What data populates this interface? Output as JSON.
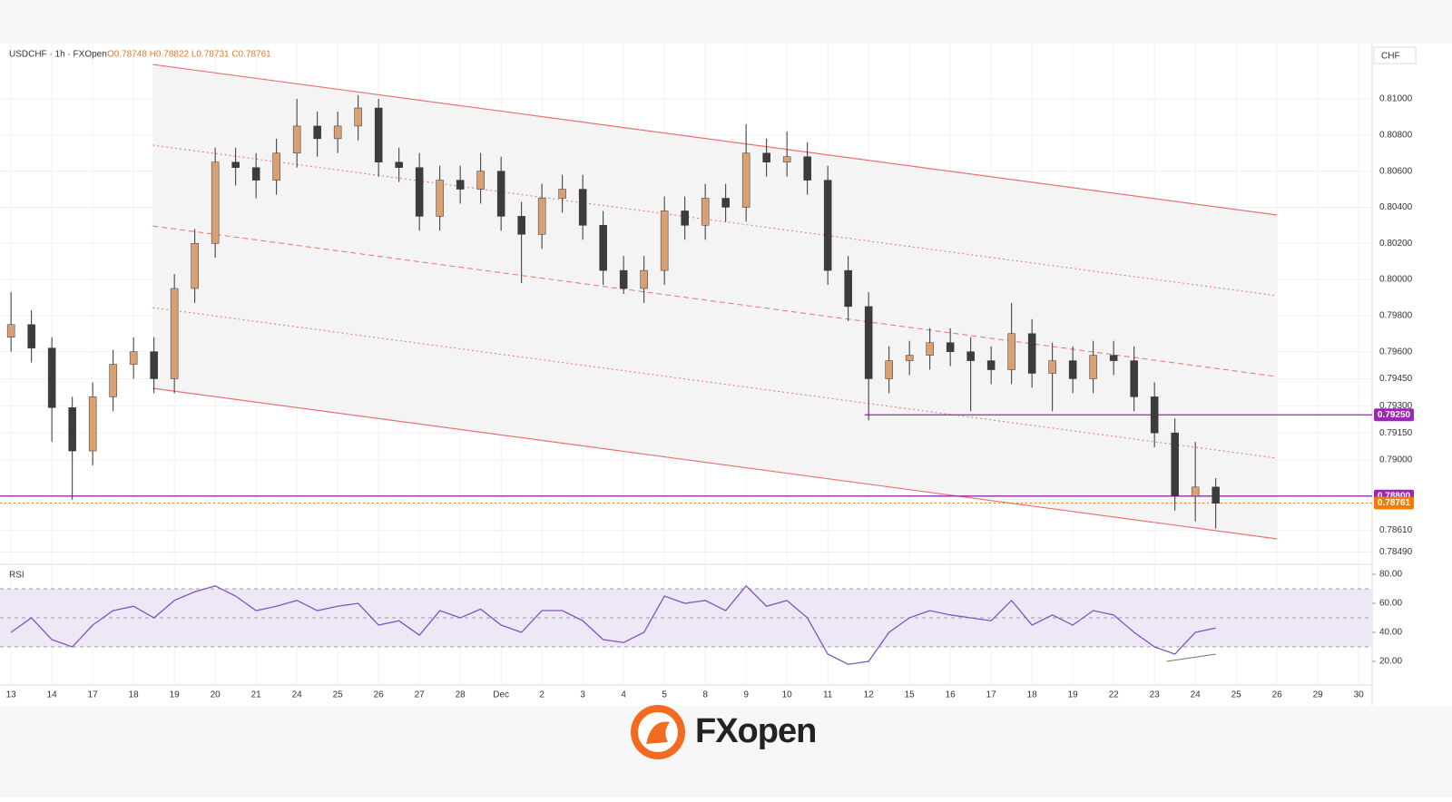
{
  "chart_data": {
    "type": "candlestick",
    "symbol": "USDCHF · 1h · FXOpen",
    "ohlc_text": "O0.78748 H0.78822 L0.78731 C0.78761",
    "axis_unit": "CHF",
    "brand": "FXopen",
    "up_color": "#d8a073",
    "down_color": "#3c3c3c",
    "x_labels": [
      "13",
      "14",
      "17",
      "18",
      "19",
      "20",
      "21",
      "24",
      "25",
      "26",
      "27",
      "28",
      "Dec",
      "2",
      "3",
      "4",
      "5",
      "8",
      "9",
      "10",
      "11",
      "12",
      "15",
      "16",
      "17",
      "18",
      "19",
      "22",
      "23",
      "24",
      "25",
      "26",
      "29",
      "30"
    ],
    "xlim": [
      -0.27,
      33.33
    ],
    "ylim": [
      0.78422,
      0.81307
    ],
    "yticks": [
      {
        "value": 0.81,
        "label": "0.81000"
      },
      {
        "value": 0.808,
        "label": "0.80800"
      },
      {
        "value": 0.806,
        "label": "0.80600"
      },
      {
        "value": 0.804,
        "label": "0.80400"
      },
      {
        "value": 0.802,
        "label": "0.80200"
      },
      {
        "value": 0.8,
        "label": "0.80000"
      },
      {
        "value": 0.798,
        "label": "0.79800"
      },
      {
        "value": 0.796,
        "label": "0.79600"
      },
      {
        "value": 0.7945,
        "label": "0.79450"
      },
      {
        "value": 0.793,
        "label": "0.79300"
      },
      {
        "value": 0.7915,
        "label": "0.79150"
      },
      {
        "value": 0.79,
        "label": "0.79000"
      },
      {
        "value": 0.7861,
        "label": "0.78610"
      },
      {
        "value": 0.7849,
        "label": "0.78490"
      }
    ],
    "x": [
      0,
      0.5,
      1,
      1.5,
      2,
      2.5,
      3,
      3.5,
      4,
      4.5,
      5,
      5.5,
      6,
      6.5,
      7,
      7.5,
      8,
      8.5,
      9,
      9.5,
      10,
      10.5,
      11,
      11.5,
      12,
      12.5,
      13,
      13.5,
      14,
      14.5,
      15,
      15.5,
      16,
      16.5,
      17,
      17.5,
      18,
      18.5,
      19,
      19.5,
      20,
      20.5,
      21,
      21.5,
      22,
      22.5,
      23,
      23.5,
      24,
      24.5,
      25,
      25.5,
      26,
      26.5,
      27,
      27.5,
      28,
      28.5,
      29,
      29.5
    ],
    "open": [
      0.7968,
      0.7975,
      0.7962,
      0.7929,
      0.7905,
      0.7935,
      0.7953,
      0.796,
      0.7945,
      0.7995,
      0.802,
      0.8065,
      0.8062,
      0.8055,
      0.807,
      0.8085,
      0.8078,
      0.8085,
      0.8095,
      0.8065,
      0.8062,
      0.8035,
      0.8055,
      0.805,
      0.806,
      0.8035,
      0.8025,
      0.8045,
      0.805,
      0.803,
      0.8005,
      0.7995,
      0.8005,
      0.8038,
      0.803,
      0.8045,
      0.804,
      0.807,
      0.8065,
      0.8068,
      0.8055,
      0.8005,
      0.7985,
      0.7945,
      0.7955,
      0.7958,
      0.7965,
      0.796,
      0.7955,
      0.795,
      0.797,
      0.7948,
      0.7955,
      0.7945,
      0.7958,
      0.7955,
      0.7935,
      0.7915,
      0.788,
      0.7885
    ],
    "high": [
      0.7993,
      0.7983,
      0.7968,
      0.7935,
      0.7943,
      0.7961,
      0.7968,
      0.7968,
      0.8003,
      0.8028,
      0.8073,
      0.8073,
      0.807,
      0.8078,
      0.81,
      0.8093,
      0.8093,
      0.8102,
      0.81,
      0.8073,
      0.807,
      0.8063,
      0.8063,
      0.807,
      0.8068,
      0.8043,
      0.8053,
      0.8058,
      0.8058,
      0.8038,
      0.8013,
      0.8013,
      0.8046,
      0.8046,
      0.8053,
      0.8053,
      0.8086,
      0.8078,
      0.8082,
      0.8076,
      0.8063,
      0.8013,
      0.7993,
      0.7963,
      0.7966,
      0.7973,
      0.7973,
      0.7968,
      0.7963,
      0.7987,
      0.7978,
      0.7965,
      0.7963,
      0.7966,
      0.7966,
      0.7963,
      0.7943,
      0.7923,
      0.791,
      0.789
    ],
    "low": [
      0.796,
      0.7954,
      0.791,
      0.7878,
      0.7897,
      0.7927,
      0.7945,
      0.7937,
      0.7937,
      0.7987,
      0.8012,
      0.8052,
      0.8045,
      0.8047,
      0.8062,
      0.8068,
      0.807,
      0.8077,
      0.8057,
      0.8054,
      0.8027,
      0.8027,
      0.8042,
      0.8042,
      0.8027,
      0.7998,
      0.8017,
      0.8037,
      0.8022,
      0.7997,
      0.7992,
      0.7987,
      0.7997,
      0.8022,
      0.8022,
      0.8032,
      0.8032,
      0.8057,
      0.8057,
      0.8047,
      0.7997,
      0.7977,
      0.7922,
      0.7937,
      0.7947,
      0.795,
      0.7952,
      0.7927,
      0.7942,
      0.7942,
      0.794,
      0.7927,
      0.7937,
      0.7937,
      0.7947,
      0.7927,
      0.7907,
      0.7872,
      0.7866,
      0.7862
    ],
    "close": [
      0.7975,
      0.7962,
      0.7929,
      0.7905,
      0.7935,
      0.7953,
      0.796,
      0.7945,
      0.7995,
      0.802,
      0.8065,
      0.8062,
      0.8055,
      0.807,
      0.8085,
      0.8078,
      0.8085,
      0.8095,
      0.8065,
      0.8062,
      0.8035,
      0.8055,
      0.805,
      0.806,
      0.8035,
      0.8025,
      0.8045,
      0.805,
      0.803,
      0.8005,
      0.7995,
      0.8005,
      0.8038,
      0.803,
      0.8045,
      0.804,
      0.807,
      0.8065,
      0.8068,
      0.8055,
      0.8005,
      0.7985,
      0.7945,
      0.7955,
      0.7958,
      0.7965,
      0.796,
      0.7955,
      0.795,
      0.797,
      0.7948,
      0.7955,
      0.7945,
      0.7958,
      0.7955,
      0.7935,
      0.7915,
      0.788,
      0.7885,
      0.7876
    ],
    "trend_lines": [
      {
        "x": [
          3.47,
          31.0
        ],
        "y": [
          0.81191,
          0.80357
        ],
        "style": "solid"
      },
      {
        "x": [
          3.47,
          31.0
        ],
        "y": [
          0.80744,
          0.7991
        ],
        "style": "dotted"
      },
      {
        "x": [
          3.47,
          31.0
        ],
        "y": [
          0.80296,
          0.79462
        ],
        "style": "dashed"
      },
      {
        "x": [
          3.47,
          31.0
        ],
        "y": [
          0.79844,
          0.7901
        ],
        "style": "dotted"
      },
      {
        "x": [
          3.47,
          31.0
        ],
        "y": [
          0.79397,
          0.78563
        ],
        "style": "solid"
      }
    ],
    "trend_color": "#e57373",
    "price_levels": [
      {
        "value": 0.7925,
        "label": "0.79250",
        "color": "#9c27b0",
        "from": 20.9,
        "style": "solid"
      },
      {
        "value": 0.788,
        "label": "0.78800",
        "color": "#9c27b0",
        "style": "solid"
      },
      {
        "value": 0.78761,
        "label": "0.78761",
        "color": "#f57c00",
        "style": "dotted"
      }
    ],
    "rsi": {
      "title": "RSI",
      "color": "#7e57c2",
      "ylim": [
        3.75,
        86.9
      ],
      "yticks": [
        {
          "value": 80,
          "label": "80.00"
        },
        {
          "value": 60,
          "label": "60.00"
        },
        {
          "value": 40,
          "label": "40.00"
        },
        {
          "value": 20,
          "label": "20.00"
        }
      ],
      "band": [
        30,
        70
      ],
      "midline": 50,
      "values": [
        40,
        50,
        35,
        30,
        45,
        55,
        58,
        50,
        62,
        68,
        72,
        65,
        55,
        58,
        62,
        55,
        58,
        60,
        45,
        48,
        38,
        55,
        50,
        56,
        45,
        40,
        55,
        55,
        48,
        35,
        33,
        40,
        65,
        60,
        62,
        55,
        72,
        58,
        62,
        50,
        25,
        18,
        20,
        40,
        50,
        55,
        52,
        50,
        48,
        62,
        45,
        52,
        45,
        55,
        52,
        40,
        30,
        25,
        40,
        43
      ],
      "divergence": {
        "x": [
          28.3,
          29.5
        ],
        "y": [
          20,
          25
        ]
      }
    }
  }
}
